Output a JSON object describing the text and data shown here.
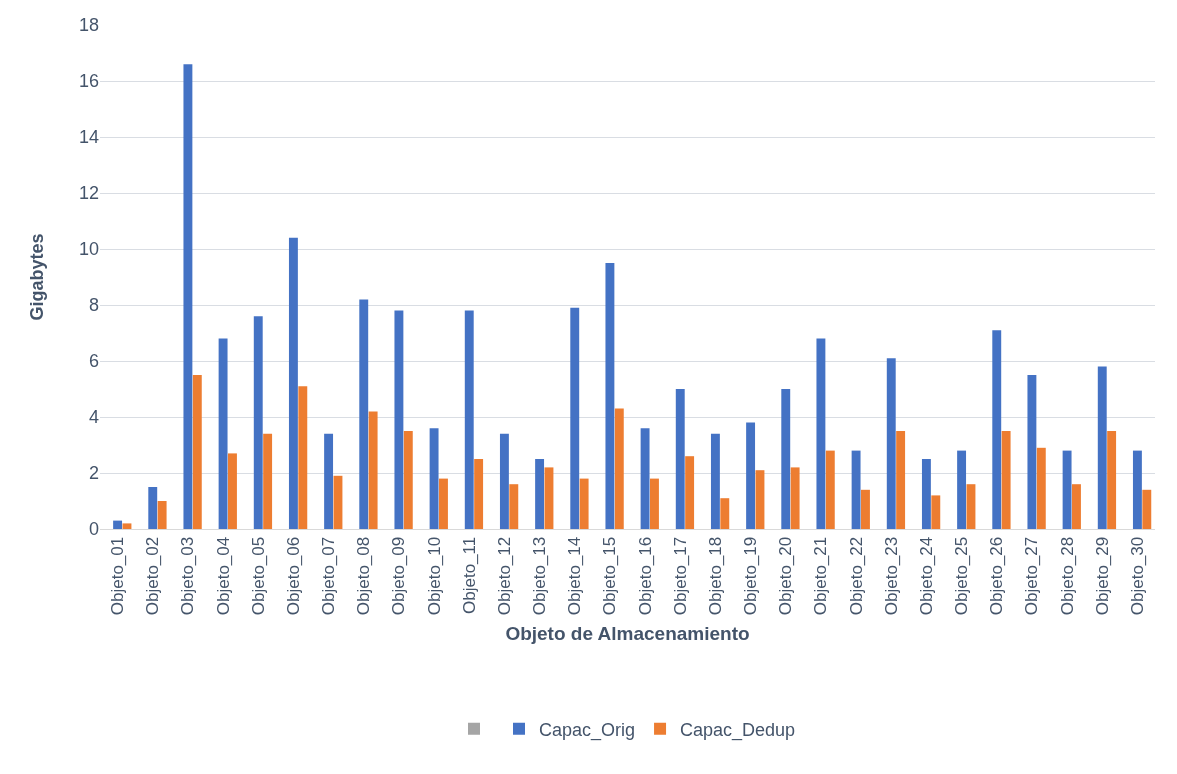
{
  "chart_data": {
    "type": "bar",
    "xlabel": "Objeto de Almacenamiento",
    "ylabel": "Gigabytes",
    "categories": [
      "Objeto_01",
      "Objeto_02",
      "Objeto_03",
      "Objeto_04",
      "Objeto_05",
      "Objeto_06",
      "Objeto_07",
      "Objeto_08",
      "Objeto_09",
      "Objeto_10",
      "Objeto_11",
      "Objeto_12",
      "Objeto_13",
      "Objeto_14",
      "Objeto_15",
      "Objeto_16",
      "Objeto_17",
      "Objeto_18",
      "Objeto_19",
      "Objeto_20",
      "Objeto_21",
      "Objeto_22",
      "Objeto_23",
      "Objeto_24",
      "Objeto_25",
      "Objeto_26",
      "Objeto_27",
      "Objeto_28",
      "Objeto_29",
      "Objeto_30"
    ],
    "series": [
      {
        "color": "#a5a5a5",
        "values": [
          null,
          null,
          null,
          null,
          null,
          null,
          null,
          null,
          null,
          null,
          null,
          null,
          null,
          null,
          null,
          null,
          null,
          null,
          null,
          null,
          null,
          null,
          null,
          null,
          null,
          null,
          null,
          null,
          null,
          null
        ]
      },
      {
        "name": "Capac_Orig",
        "color": "#4472c4",
        "values": [
          0.3,
          1.5,
          16.6,
          6.8,
          7.6,
          10.4,
          3.4,
          8.2,
          7.8,
          3.6,
          7.8,
          3.4,
          2.5,
          7.9,
          9.5,
          3.6,
          5.0,
          3.4,
          3.8,
          5.0,
          6.8,
          2.8,
          6.1,
          2.5,
          2.8,
          7.1,
          5.5,
          2.8,
          5.8,
          2.8
        ]
      },
      {
        "name": "Capac_Dedup",
        "color": "#ed7d31",
        "values": [
          0.2,
          1.0,
          5.5,
          2.7,
          3.4,
          5.1,
          1.9,
          4.2,
          3.5,
          1.8,
          2.5,
          1.6,
          2.2,
          1.8,
          4.3,
          1.8,
          2.6,
          1.1,
          2.1,
          2.2,
          2.8,
          1.4,
          3.5,
          1.2,
          1.6,
          3.5,
          2.9,
          1.6,
          3.5,
          1.4
        ]
      }
    ],
    "ylim": [
      0,
      18
    ],
    "yticks": [
      0,
      2,
      4,
      6,
      8,
      10,
      12,
      14,
      16,
      18
    ],
    "grid": "y",
    "legend": "bottom"
  }
}
